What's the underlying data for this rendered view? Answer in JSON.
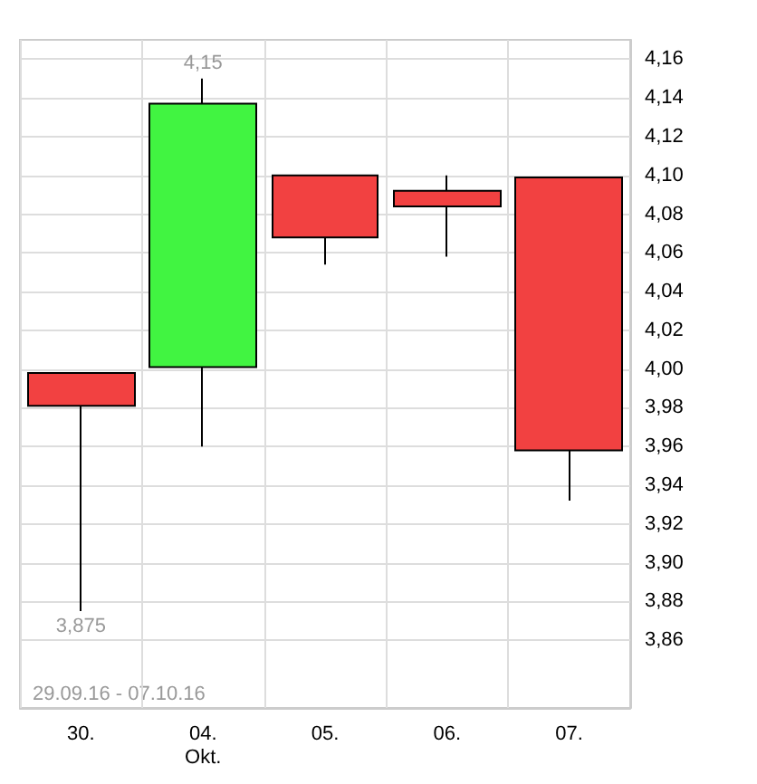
{
  "chart_data": {
    "type": "candlestick",
    "categories": [
      "30.",
      "04.\nOkt.",
      "05.",
      "06.",
      "07."
    ],
    "ohlc": [
      [
        3.998,
        3.998,
        3.875,
        3.981
      ],
      [
        4.001,
        4.15,
        3.96,
        4.137
      ],
      [
        4.1,
        4.1,
        4.054,
        4.068
      ],
      [
        4.092,
        4.1,
        4.058,
        4.084
      ],
      [
        4.099,
        4.099,
        3.932,
        3.958
      ]
    ],
    "colors": [
      "#f24141",
      "#41f441",
      "#f24141",
      "#f24141",
      "#f24141"
    ],
    "ylim": [
      3.825,
      4.17
    ],
    "yticks": [
      {
        "value": 3.86,
        "label": "3,86"
      },
      {
        "value": 3.88,
        "label": "3,88"
      },
      {
        "value": 3.9,
        "label": "3,90"
      },
      {
        "value": 3.92,
        "label": "3,92"
      },
      {
        "value": 3.94,
        "label": "3,94"
      },
      {
        "value": 3.96,
        "label": "3,96"
      },
      {
        "value": 3.98,
        "label": "3,98"
      },
      {
        "value": 4.0,
        "label": "4,00"
      },
      {
        "value": 4.02,
        "label": "4,02"
      },
      {
        "value": 4.04,
        "label": "4,04"
      },
      {
        "value": 4.06,
        "label": "4,06"
      },
      {
        "value": 4.08,
        "label": "4,08"
      },
      {
        "value": 4.1,
        "label": "4,10"
      },
      {
        "value": 4.12,
        "label": "4,12"
      },
      {
        "value": 4.14,
        "label": "4,14"
      },
      {
        "value": 4.16,
        "label": "4,16"
      }
    ],
    "grid": true,
    "annotations": [
      {
        "text": "4,15",
        "x": "04.\nOkt.",
        "y": 4.15
      },
      {
        "text": "3,875",
        "x": "30.",
        "y": 3.875
      },
      "29.09.16 - 07.10.16"
    ]
  }
}
